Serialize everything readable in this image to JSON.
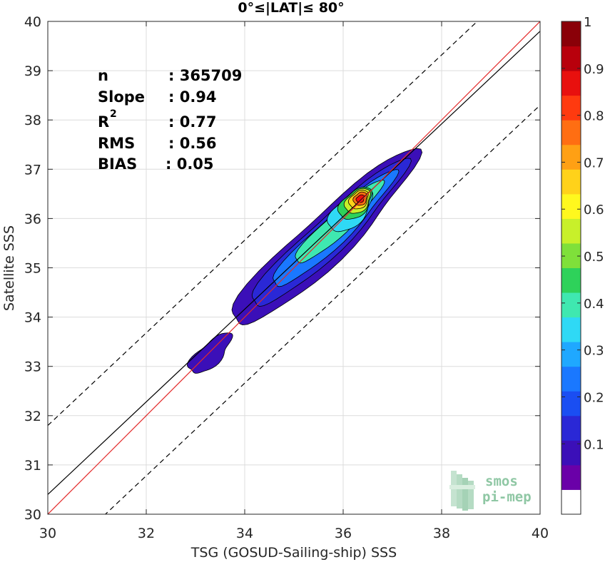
{
  "chart_data": {
    "type": "contour-density-scatter",
    "title": "0°≤|LAT|≤ 80°",
    "xlabel": "TSG (GOSUD-Sailing-ship) SSS",
    "ylabel": "Satellite SSS",
    "xlim": [
      30,
      40
    ],
    "ylim": [
      30,
      40
    ],
    "xticks": [
      30,
      32,
      34,
      36,
      38,
      40
    ],
    "yticks": [
      30,
      31,
      32,
      33,
      34,
      35,
      36,
      37,
      38,
      39,
      40
    ],
    "grid": true,
    "stats": [
      {
        "label": "n",
        "value": ": 365709"
      },
      {
        "label": "Slope",
        "value": ": 0.94"
      },
      {
        "label": "R",
        "sup": "2",
        "value": ": 0.77"
      },
      {
        "label": "RMS",
        "value": ": 0.56"
      },
      {
        "label": "BIAS",
        "value": ": 0.05"
      }
    ],
    "lines": {
      "identity": {
        "slope": 1,
        "intercept": 0,
        "color": "#e32a2a"
      },
      "fit": {
        "slope": 0.94,
        "intercept": 2.2,
        "color": "#000000"
      },
      "upper_bound": {
        "slope": 0.94,
        "intercept": 3.6,
        "dashed": true
      },
      "lower_bound": {
        "slope": 0.94,
        "intercept": 0.7,
        "dashed": true
      }
    },
    "density_peak": {
      "x": 36.35,
      "y": 36.4,
      "value": 1.0
    },
    "colorbar": {
      "ticks": [
        0.1,
        0.2,
        0.3,
        0.4,
        0.5,
        0.6,
        0.7,
        0.8,
        0.9,
        1
      ],
      "tick_labels": [
        "0.1",
        "0.2",
        "0.3",
        "0.4",
        "0.5",
        "0.6",
        "0.7",
        "0.8",
        "0.9",
        "1"
      ],
      "colors": [
        "#ffffff",
        "#6a00a8",
        "#3b0fb8",
        "#2a28d6",
        "#1a4ef2",
        "#1a78ff",
        "#1fa8ff",
        "#2fd9f5",
        "#3fe8b0",
        "#2ed25a",
        "#7fe03a",
        "#c8f02a",
        "#fff81e",
        "#ffd21a",
        "#ffa014",
        "#ff6e12",
        "#ff3a0f",
        "#e8100e",
        "#b8000c",
        "#8a0008"
      ]
    }
  },
  "watermark": {
    "line1": "smos",
    "line2": "pi-mep"
  }
}
